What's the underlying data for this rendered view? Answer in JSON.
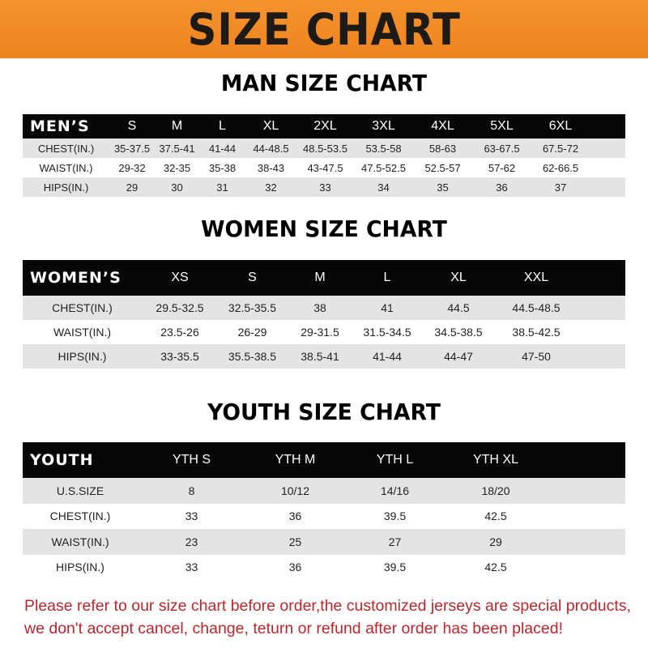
{
  "banner": "SIZE CHART",
  "men": {
    "title": "MAN SIZE CHART",
    "header": [
      "MEN’S",
      "S",
      "M",
      "L",
      "XL",
      "2XL",
      "3XL",
      "4XL",
      "5XL",
      "6XL"
    ],
    "rows": [
      [
        "CHEST(IN.)",
        "35-37.5",
        "37.5-41",
        "41-44",
        "44-48.5",
        "48.5-53.5",
        "53.5-58",
        "58-63",
        "63-67.5",
        "67.5-72"
      ],
      [
        "WAIST(IN.)",
        "29-32",
        "32-35",
        "35-38",
        "38-43",
        "43-47.5",
        "47.5-52.5",
        "52.5-57",
        "57-62",
        "62-66.5"
      ],
      [
        "HIPS(IN.)",
        "29",
        "30",
        "31",
        "32",
        "33",
        "34",
        "35",
        "36",
        "37"
      ]
    ]
  },
  "women": {
    "title": "WOMEN SIZE CHART",
    "header": [
      "WOMEN’S",
      "XS",
      "S",
      "M",
      "L",
      "XL",
      "XXL"
    ],
    "rows": [
      [
        "CHEST(IN.)",
        "29.5-32.5",
        "32.5-35.5",
        "38",
        "41",
        "44.5",
        "44.5-48.5"
      ],
      [
        "WAIST(IN.)",
        "23.5-26",
        "26-29",
        "29-31.5",
        "31.5-34.5",
        "34.5-38.5",
        "38.5-42.5"
      ],
      [
        "HIPS(IN.)",
        "33-35.5",
        "35.5-38.5",
        "38.5-41",
        "41-44",
        "44-47",
        "47-50"
      ]
    ]
  },
  "youth": {
    "title": "YOUTH SIZE CHART",
    "header": [
      "YOUTH",
      "YTH S",
      "YTH M",
      "YTH L",
      "YTH XL"
    ],
    "rows": [
      [
        "U.S.SIZE",
        "8",
        "10/12",
        "14/16",
        "18/20"
      ],
      [
        "CHEST(IN.)",
        "33",
        "36",
        "39.5",
        "42.5"
      ],
      [
        "WAIST(IN.)",
        "23",
        "25",
        "27",
        "29"
      ],
      [
        "HIPS(IN.)",
        "33",
        "36",
        "39.5",
        "42.5"
      ]
    ]
  },
  "note": {
    "line1": "Please refer to our size chart before order,the customized jerseys are special products,",
    "line2": "we don't accept cancel, change, teturn or refund after order has been placed!"
  }
}
